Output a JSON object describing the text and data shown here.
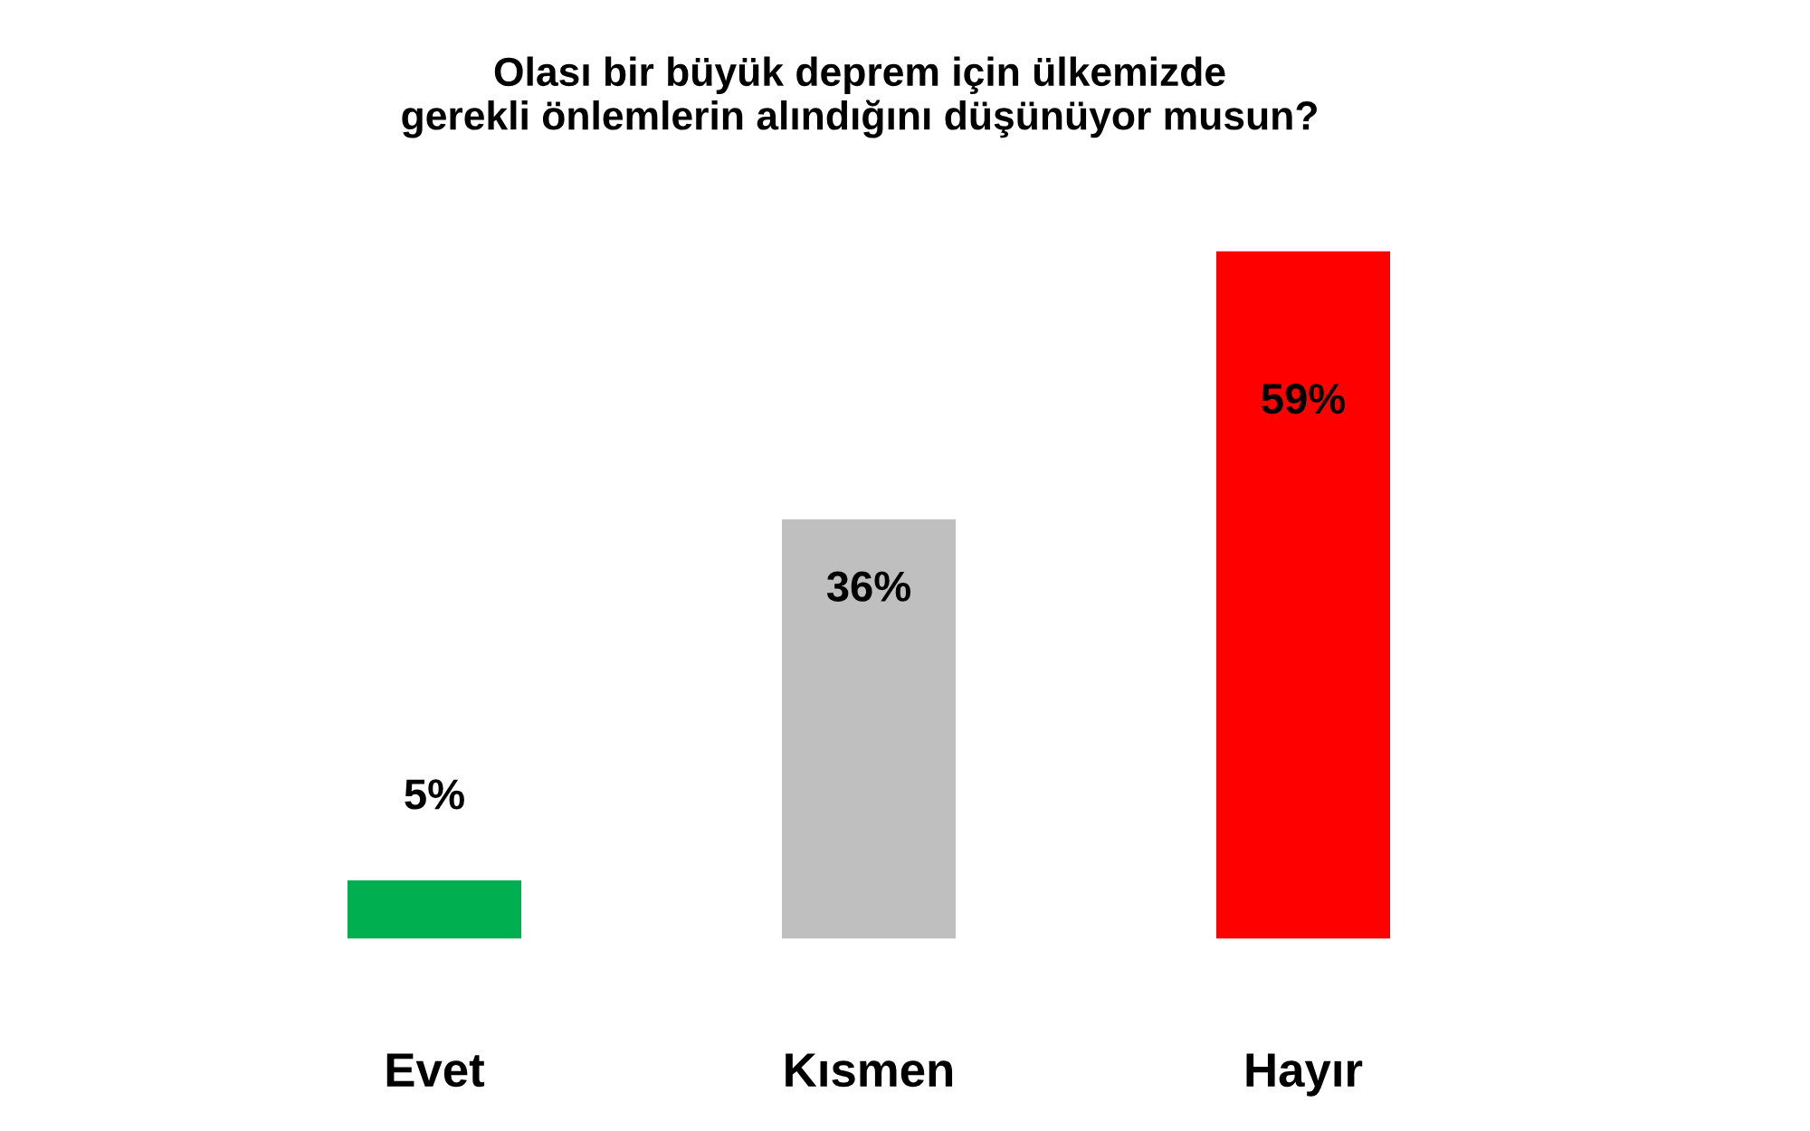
{
  "chart_data": {
    "type": "bar",
    "title": "Olası bir büyük deprem için ülkemizde\ngerekli önlemlerin alındığını düşünüyor musun?",
    "categories": [
      "Evet",
      "Kısmen",
      "Hayır"
    ],
    "values": [
      5,
      36,
      59
    ],
    "colors": [
      "#00b050",
      "#bfbfbf",
      "#ff0000"
    ],
    "value_labels": [
      "5%",
      "36%",
      "59%"
    ],
    "legend": false,
    "grid": false
  }
}
